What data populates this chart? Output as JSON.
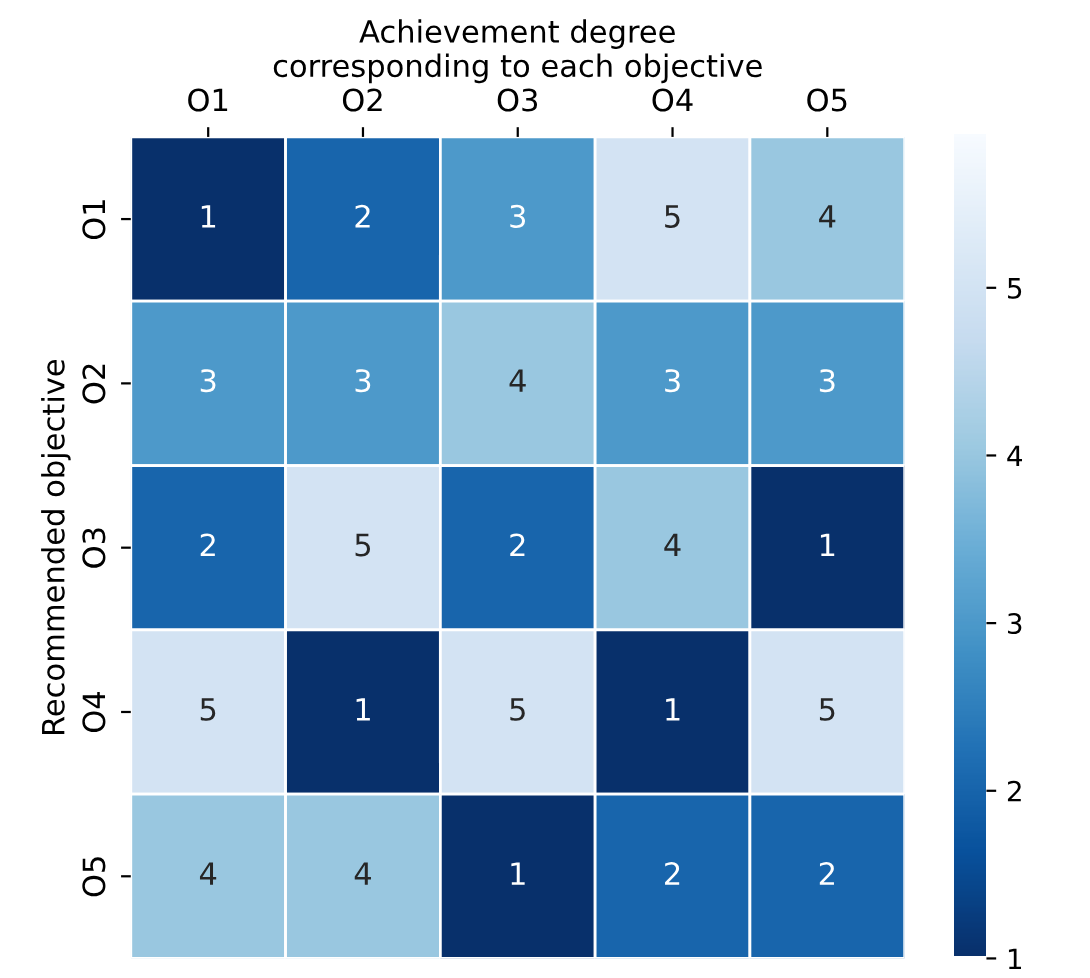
{
  "chart_data": {
    "type": "heatmap",
    "xlabel": "Achievement degree\ncorresponding to each objective",
    "ylabel": "Recommended objective",
    "categories": [
      "O1",
      "O2",
      "O3",
      "O4",
      "O5"
    ],
    "y_categories": [
      "O1",
      "O2",
      "O3",
      "O4",
      "O5"
    ],
    "cells": [
      [
        1,
        2,
        3,
        5,
        4
      ],
      [
        3,
        3,
        4,
        3,
        3
      ],
      [
        2,
        5,
        2,
        4,
        1
      ],
      [
        5,
        1,
        5,
        1,
        5
      ],
      [
        4,
        4,
        1,
        2,
        2
      ]
    ],
    "clim": [
      1,
      5.9
    ],
    "cticks": [
      1,
      2,
      3,
      4,
      5
    ],
    "data_labels": true
  }
}
